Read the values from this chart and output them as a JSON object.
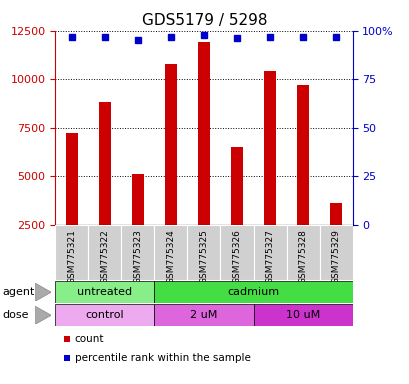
{
  "title": "GDS5179 / 5298",
  "samples": [
    "GSM775321",
    "GSM775322",
    "GSM775323",
    "GSM775324",
    "GSM775325",
    "GSM775326",
    "GSM775327",
    "GSM775328",
    "GSM775329"
  ],
  "counts": [
    7200,
    8800,
    5100,
    10800,
    11900,
    6500,
    10400,
    9700,
    3600
  ],
  "percentile_ranks": [
    97,
    97,
    95,
    97,
    98,
    96,
    97,
    97,
    97
  ],
  "ylim_left": [
    2500,
    12500
  ],
  "ylim_right": [
    0,
    100
  ],
  "yticks_left": [
    2500,
    5000,
    7500,
    10000,
    12500
  ],
  "yticks_right": [
    0,
    25,
    50,
    75,
    100
  ],
  "ytick_labels_right": [
    "0",
    "25",
    "50",
    "75",
    "100%"
  ],
  "bar_color": "#cc0000",
  "dot_color": "#0000cc",
  "agent_groups": [
    {
      "label": "untreated",
      "start": 0,
      "end": 3,
      "color": "#88ee88"
    },
    {
      "label": "cadmium",
      "start": 3,
      "end": 9,
      "color": "#44dd44"
    }
  ],
  "dose_groups": [
    {
      "label": "control",
      "start": 0,
      "end": 3,
      "color": "#eeaaee"
    },
    {
      "label": "2 uM",
      "start": 3,
      "end": 6,
      "color": "#dd66dd"
    },
    {
      "label": "10 uM",
      "start": 6,
      "end": 9,
      "color": "#cc33cc"
    }
  ],
  "legend_items": [
    {
      "label": "count",
      "color": "#cc0000"
    },
    {
      "label": "percentile rank within the sample",
      "color": "#0000cc"
    }
  ],
  "left_axis_color": "#cc0000",
  "right_axis_color": "#0000cc",
  "tick_label_bg": "#d0d0d0"
}
